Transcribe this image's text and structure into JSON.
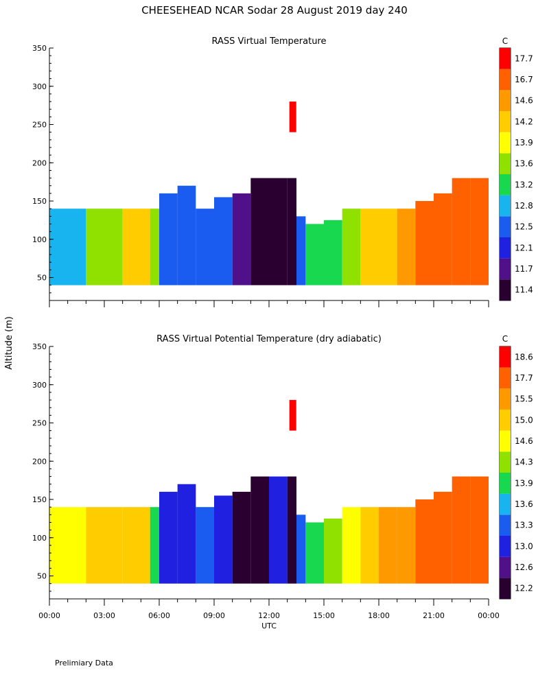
{
  "figure": {
    "title": "CHEESEHEAD   NCAR Sodar   28 August 2019   day 240",
    "footer": "Prelimiary Data",
    "shared_ylabel": "Altitude (m)",
    "xlabel": "UTC"
  },
  "chart_data": [
    {
      "type": "heatmap",
      "title": "RASS Virtual Temperature",
      "unit": "C",
      "x_ticks": [
        "00:00",
        "03:00",
        "06:00",
        "09:00",
        "12:00",
        "15:00",
        "18:00",
        "21:00",
        "00:00"
      ],
      "xlim_hours": [
        0,
        24
      ],
      "ylim": [
        20,
        350
      ],
      "y_ticks": [
        50,
        100,
        150,
        200,
        250,
        300,
        350
      ],
      "levels": [
        11.4,
        11.7,
        12.1,
        12.5,
        12.8,
        13.2,
        13.6,
        13.9,
        14.2,
        14.6,
        16.7,
        17.7
      ],
      "colors": [
        "#2a0030",
        "#50108a",
        "#2020e0",
        "#1a5cf0",
        "#18b4f0",
        "#18d850",
        "#90e000",
        "#ffff00",
        "#ffcc00",
        "#ff9900",
        "#ff6000",
        "#ff0000"
      ],
      "band_hours": [
        0,
        2,
        4,
        5.5,
        6,
        7,
        8,
        9,
        10,
        11,
        12,
        13,
        13.5,
        14,
        15,
        16,
        17,
        18,
        19,
        20,
        21,
        22,
        23,
        24
      ],
      "band_values": [
        12.9,
        13.8,
        14.2,
        13.6,
        12.5,
        12.6,
        12.7,
        12.5,
        11.8,
        11.5,
        11.5,
        11.6,
        12.6,
        13.2,
        13.4,
        13.8,
        14.2,
        14.5,
        14.6,
        16.7,
        17.0,
        17.5,
        17.2,
        17.2
      ],
      "band_top_m": [
        140,
        140,
        140,
        140,
        160,
        170,
        140,
        155,
        160,
        180,
        180,
        180,
        130,
        120,
        125,
        140,
        140,
        140,
        140,
        150,
        160,
        180,
        180,
        180
      ],
      "band_bottom_m": 40,
      "isolated_patch": {
        "hour": 13.3,
        "from_m": 240,
        "to_m": 280,
        "value": 17.8
      }
    },
    {
      "type": "heatmap",
      "title": "RASS Virtual Potential Temperature (dry adiabatic)",
      "unit": "C",
      "x_ticks": [
        "00:00",
        "03:00",
        "06:00",
        "09:00",
        "12:00",
        "15:00",
        "18:00",
        "21:00",
        "00:00"
      ],
      "xlim_hours": [
        0,
        24
      ],
      "ylim": [
        20,
        350
      ],
      "y_ticks": [
        50,
        100,
        150,
        200,
        250,
        300,
        350
      ],
      "levels": [
        12.2,
        12.6,
        13.0,
        13.3,
        13.6,
        13.9,
        14.3,
        14.6,
        15.0,
        15.5,
        17.7,
        18.6
      ],
      "colors": [
        "#2a0030",
        "#50108a",
        "#2020e0",
        "#1a5cf0",
        "#18b4f0",
        "#18d850",
        "#90e000",
        "#ffff00",
        "#ffcc00",
        "#ff9900",
        "#ff6000",
        "#ff0000"
      ],
      "band_hours": [
        0,
        2,
        4,
        5.5,
        6,
        7,
        8,
        9,
        10,
        11,
        12,
        13,
        13.5,
        14,
        15,
        16,
        17,
        18,
        19,
        20,
        21,
        22,
        23,
        24
      ],
      "band_values": [
        14.6,
        15.0,
        15.3,
        14.0,
        13.1,
        13.2,
        13.4,
        13.0,
        12.5,
        12.4,
        13.0,
        12.5,
        13.5,
        13.9,
        14.3,
        14.7,
        15.2,
        15.5,
        15.6,
        17.7,
        18.0,
        18.5,
        18.3,
        18.3
      ],
      "band_top_m": [
        140,
        140,
        140,
        140,
        160,
        170,
        140,
        155,
        160,
        180,
        180,
        180,
        130,
        120,
        125,
        140,
        140,
        140,
        140,
        150,
        160,
        180,
        180,
        180
      ],
      "band_bottom_m": 40,
      "isolated_patch": {
        "hour": 13.3,
        "from_m": 240,
        "to_m": 280,
        "value": 18.7
      }
    }
  ]
}
